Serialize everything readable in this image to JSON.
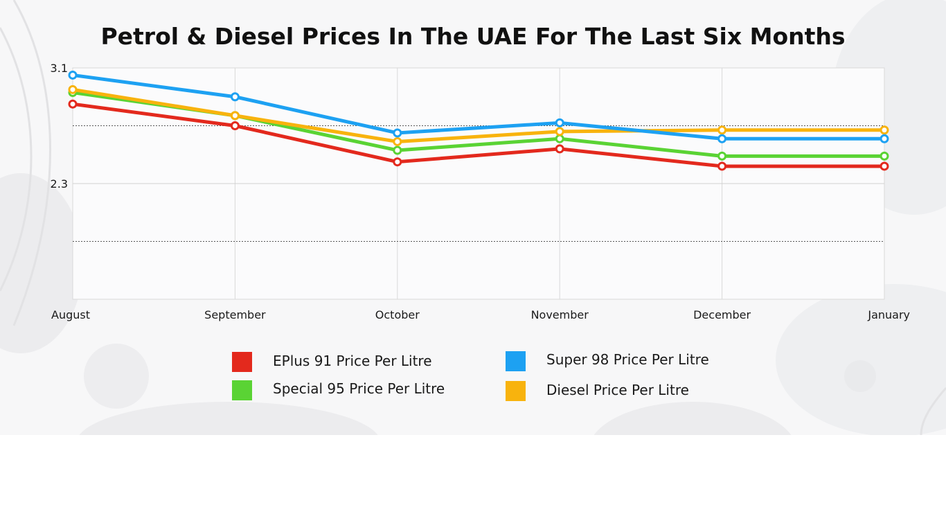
{
  "chart_data": {
    "type": "line",
    "title": "Petrol & Diesel Prices In The UAE For The Last Six Months",
    "xlabel": "",
    "ylabel": "",
    "categories": [
      "August",
      "September",
      "October",
      "November",
      "December",
      "January"
    ],
    "yticks": [
      "3.1",
      "2.3"
    ],
    "ylim": [
      1.5,
      3.1
    ],
    "grid": true,
    "series": [
      {
        "name": "EPlus 91 Price Per Litre",
        "color": "#e3291d",
        "values": [
          2.85,
          2.7,
          2.45,
          2.54,
          2.42,
          2.42
        ]
      },
      {
        "name": "Super 98 Price Per Litre",
        "color": "#1da1f2",
        "values": [
          3.05,
          2.9,
          2.65,
          2.72,
          2.61,
          2.61
        ]
      },
      {
        "name": "Special 95 Price Per Litre",
        "color": "#5ad334",
        "values": [
          2.93,
          2.77,
          2.53,
          2.61,
          2.49,
          2.49
        ]
      },
      {
        "name": "Diesel Price Per Litre",
        "color": "#f8b30d",
        "values": [
          2.95,
          2.77,
          2.59,
          2.66,
          2.67,
          2.67
        ]
      }
    ],
    "legend_position": "bottom"
  }
}
